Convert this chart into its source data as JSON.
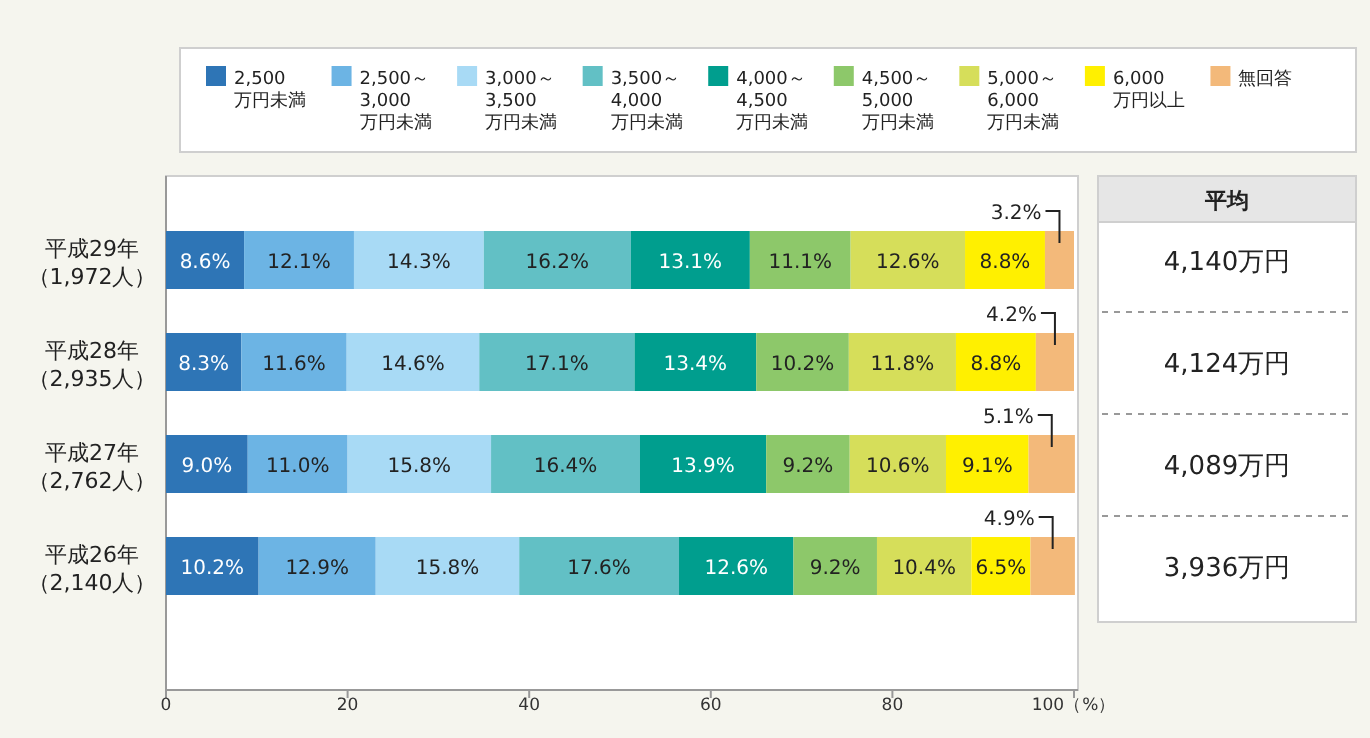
{
  "chart_data": [
    {
      "type": "bar",
      "orientation": "horizontal",
      "stacked": true,
      "legend": "top",
      "categories": [
        "平成29年（1,972人）",
        "平成28年（2,935人）",
        "平成27年（2,762人）",
        "平成26年（2,140人）"
      ],
      "xlim": [
        0,
        100
      ],
      "xticks": [
        0,
        20,
        40,
        60,
        80,
        {
          "value": 100,
          "label": "100（%）"
        }
      ],
      "series": [
        {
          "name": "2,500万円未満",
          "color": "#2e75b6",
          "values": [
            8.6,
            8.3,
            9.0,
            10.2
          ],
          "value_labels": [
            "8.6%",
            "8.3%",
            "9.0%",
            "10.2%"
          ]
        },
        {
          "name": "2,500～3,000万円未満",
          "color": "#6cb4e4",
          "values": [
            12.1,
            11.6,
            11.0,
            12.9
          ],
          "value_labels": [
            "12.1%",
            "11.6%",
            "11.0%",
            "12.9%"
          ]
        },
        {
          "name": "3,000～3,500万円未満",
          "color": "#a8daf5",
          "values": [
            14.3,
            14.6,
            15.8,
            15.8
          ],
          "value_labels": [
            "14.3%",
            "14.6%",
            "15.8%",
            "15.8%"
          ]
        },
        {
          "name": "3,500～4,000万円未満",
          "color": "#62c0c5",
          "values": [
            16.2,
            17.1,
            16.4,
            17.6
          ],
          "value_labels": [
            "16.2%",
            "17.1%",
            "16.4%",
            "17.6%"
          ]
        },
        {
          "name": "4,000～4,500万円未満",
          "color": "#009e8e",
          "values": [
            13.1,
            13.4,
            13.9,
            12.6
          ],
          "value_labels": [
            "13.1%",
            "13.4%",
            "13.9%",
            "12.6%"
          ]
        },
        {
          "name": "4,500～5,000万円未満",
          "color": "#8dc86a",
          "values": [
            11.1,
            10.2,
            9.2,
            9.2
          ],
          "value_labels": [
            "11.1%",
            "10.2%",
            "9.2%",
            "9.2%"
          ]
        },
        {
          "name": "5,000～6,000万円未満",
          "color": "#d6de5a",
          "values": [
            12.6,
            11.8,
            10.6,
            10.4
          ],
          "value_labels": [
            "12.6%",
            "11.8%",
            "10.6%",
            "10.4%"
          ]
        },
        {
          "name": "6,000万円以上",
          "color": "#fff000",
          "values": [
            8.8,
            8.8,
            9.1,
            6.5
          ],
          "value_labels": [
            "8.8%",
            "8.8%",
            "9.1%",
            "6.5%"
          ]
        },
        {
          "name": "無回答",
          "color": "#f3b97a",
          "values": [
            3.2,
            4.2,
            5.1,
            4.9
          ],
          "value_labels": [
            "3.2%",
            "4.2%",
            "5.1%",
            "4.9%"
          ]
        }
      ]
    },
    {
      "type": "other",
      "title": "平均",
      "annotations": [
        "4,140万円",
        "4,124万円",
        "4,089万円",
        "3,936万円"
      ]
    }
  ]
}
